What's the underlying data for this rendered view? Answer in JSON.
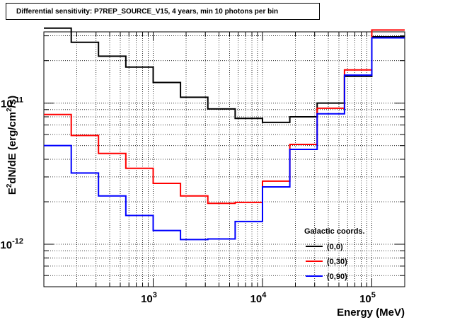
{
  "chart_data": {
    "type": "line",
    "title": "Differential sensitivity: P7REP_SOURCE_V15, 4 years, min 10 photons per bin",
    "xlabel": "Energy (MeV)",
    "ylabel": "E2dN/dE (erg/cm2/s)",
    "ylabel_parts": {
      "a": "E",
      "b": "2",
      "c": "dN/dE (erg/cm",
      "d": "2",
      "e": "/s)"
    },
    "xscale": "log",
    "yscale": "log",
    "xlim": [
      100,
      200000
    ],
    "ylim": [
      5e-13,
      3.2e-11
    ],
    "grid": true,
    "step": true,
    "x_ticks": [
      {
        "value": 1000,
        "base": "10",
        "exp": "3"
      },
      {
        "value": 10000,
        "base": "10",
        "exp": "4"
      },
      {
        "value": 100000,
        "base": "10",
        "exp": "5"
      }
    ],
    "y_ticks": [
      {
        "value": 1e-12,
        "base": "10",
        "exp": "-12"
      },
      {
        "value": 1e-11,
        "base": "10",
        "exp": "-11"
      }
    ],
    "bin_edges": [
      100,
      178,
      316,
      562,
      1000,
      1778,
      3162,
      5623,
      10000,
      17783,
      31623,
      56234,
      100000,
      200000
    ],
    "legend": {
      "title": "Galactic coords.",
      "placement": "bottom-right"
    },
    "series": [
      {
        "name": "(0,0)",
        "color": "#000000",
        "values": [
          3.4e-11,
          2.7e-11,
          2.15e-11,
          1.8e-11,
          1.4e-11,
          1.1e-11,
          9.1e-12,
          7.8e-12,
          7.3e-12,
          8e-12,
          1e-11,
          1.55e-11,
          2.95e-11
        ]
      },
      {
        "name": "(0,30)",
        "color": "#ff0000",
        "values": [
          8.3e-12,
          5.9e-12,
          4.4e-12,
          3.45e-12,
          2.7e-12,
          2.2e-12,
          1.95e-12,
          1.98e-12,
          2.8e-12,
          5.1e-12,
          9.2e-12,
          1.72e-11,
          3.3e-11
        ]
      },
      {
        "name": "(0,90)",
        "color": "#0000ff",
        "values": [
          5e-12,
          3.2e-12,
          2.2e-12,
          1.6e-12,
          1.25e-12,
          1.08e-12,
          1.09e-12,
          1.45e-12,
          2.55e-12,
          4.7e-12,
          8.4e-12,
          1.58e-11,
          2.9e-11
        ]
      }
    ]
  }
}
